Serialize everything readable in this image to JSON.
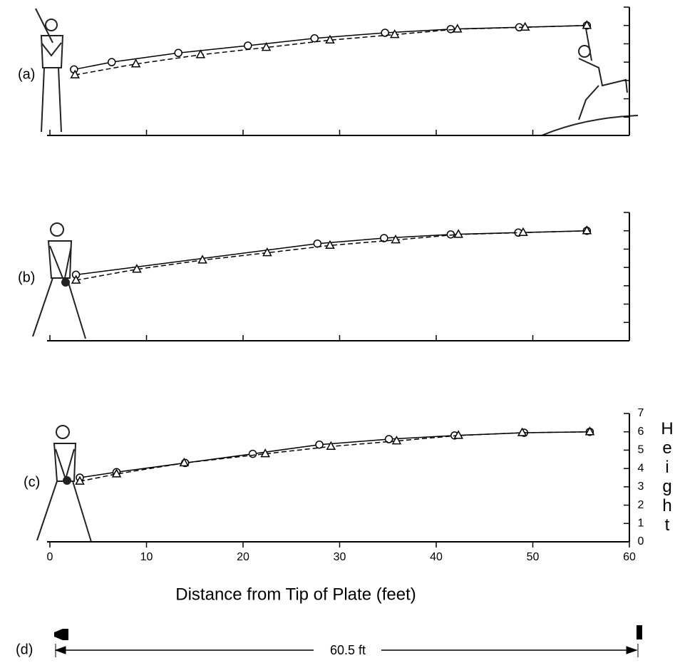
{
  "chart_data": [
    {
      "type": "line",
      "label": "(a)",
      "xlim": [
        0,
        60
      ],
      "ylim": [
        0,
        7
      ],
      "tick_labels": false,
      "xticks": [
        0,
        10,
        20,
        30,
        40,
        50,
        60
      ],
      "yticks": [
        0,
        1,
        2,
        3,
        4,
        5,
        6,
        7
      ],
      "series": [
        {
          "marker": "circle",
          "dashed": false,
          "color": "#000000",
          "x": [
            2.5,
            6.4,
            13.3,
            20.5,
            27.4,
            34.7,
            41.5,
            48.6,
            55.6
          ],
          "values": [
            3.6,
            4.0,
            4.5,
            4.9,
            5.3,
            5.6,
            5.8,
            5.9,
            6.0
          ]
        },
        {
          "marker": "triangle",
          "dashed": true,
          "color": "#000000",
          "x": [
            2.6,
            8.9,
            15.6,
            22.4,
            29.0,
            35.7,
            42.2,
            49.2,
            55.6
          ],
          "values": [
            3.3,
            3.9,
            4.4,
            4.8,
            5.2,
            5.5,
            5.8,
            5.9,
            6.0
          ]
        }
      ]
    },
    {
      "type": "line",
      "label": "(b)",
      "xlim": [
        0,
        60
      ],
      "ylim": [
        0,
        7
      ],
      "tick_labels": false,
      "xticks": [
        0,
        10,
        20,
        30,
        40,
        50,
        60
      ],
      "yticks": [
        0,
        1,
        2,
        3,
        4,
        5,
        6,
        7
      ],
      "series": [
        {
          "marker": "circle",
          "dashed": false,
          "color": "#000000",
          "x": [
            2.7,
            27.7,
            34.6,
            41.5,
            48.5,
            55.6
          ],
          "values": [
            3.6,
            5.3,
            5.6,
            5.8,
            5.9,
            6.0
          ]
        },
        {
          "marker": "triangle",
          "dashed": true,
          "color": "#000000",
          "x": [
            2.7,
            9.0,
            15.8,
            22.5,
            29.0,
            35.8,
            42.3,
            49.0,
            55.6
          ],
          "values": [
            3.3,
            3.9,
            4.4,
            4.8,
            5.2,
            5.5,
            5.8,
            5.9,
            6.0
          ]
        }
      ]
    },
    {
      "type": "line",
      "label": "(c)",
      "xlim": [
        0,
        60
      ],
      "ylim": [
        0,
        7
      ],
      "tick_labels": true,
      "xticks": [
        0,
        10,
        20,
        30,
        40,
        50,
        60
      ],
      "yticks": [
        0,
        1,
        2,
        3,
        4,
        5,
        6,
        7
      ],
      "xlabel": "Distance from Tip of Plate (feet)",
      "ylabel": "Height",
      "series": [
        {
          "marker": "circle",
          "dashed": false,
          "color": "#000000",
          "x": [
            3.1,
            6.9,
            14.0,
            21.0,
            27.9,
            35.1,
            41.9,
            49.1,
            55.9
          ],
          "values": [
            3.5,
            3.8,
            4.3,
            4.8,
            5.3,
            5.6,
            5.8,
            5.95,
            6.0
          ]
        },
        {
          "marker": "triangle",
          "dashed": true,
          "color": "#000000",
          "x": [
            3.1,
            6.9,
            13.9,
            22.3,
            29.1,
            35.9,
            42.3,
            48.9,
            55.9
          ],
          "values": [
            3.3,
            3.7,
            4.3,
            4.8,
            5.2,
            5.5,
            5.8,
            5.95,
            6.0
          ]
        }
      ]
    }
  ],
  "diagram": {
    "label": "(d)",
    "distance": "60.5 ft"
  }
}
